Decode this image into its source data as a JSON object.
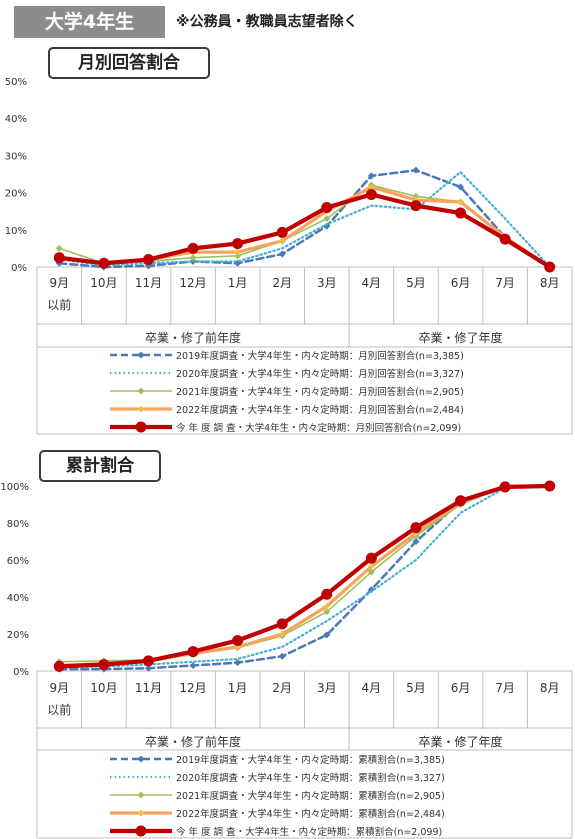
{
  "header": {
    "badge": "大学4年生",
    "note": "※公務員・教職員志望者除く"
  },
  "colors": {
    "s2019": "#4a79b8",
    "s2020": "#4bafd0",
    "s2021": "#9dc15e",
    "s2022": "#f7a35b",
    "current": "#c00000"
  },
  "chart_data": [
    {
      "type": "line",
      "title": "月別回答割合",
      "categories": [
        "9月",
        "10月",
        "11月",
        "12月",
        "1月",
        "2月",
        "3月",
        "4月",
        "5月",
        "6月",
        "7月",
        "8月"
      ],
      "category_sublabels": [
        "以前",
        "",
        "",
        "",
        "",
        "",
        "",
        "",
        "",
        "",
        "",
        ""
      ],
      "groups": [
        {
          "label": "卒業・修了前年度",
          "from": 0,
          "to": 6
        },
        {
          "label": "卒業・修了年度",
          "from": 7,
          "to": 11
        }
      ],
      "ylim": [
        0,
        50
      ],
      "yticks": [
        "0%",
        "10%",
        "20%",
        "30%",
        "40%",
        "50%"
      ],
      "grid": false,
      "legend_placement": "bottom",
      "series": [
        {
          "name": "2019年度調査・大学4年生・内々定時期：月別回答割合(n=3,385)",
          "values": [
            1,
            0,
            0.3,
            1.5,
            1,
            3.5,
            11,
            24.5,
            26,
            21.5,
            8,
            0
          ]
        },
        {
          "name": "2020年度調査・大学4年生・内々定時期：月別回答割合(n=3,327)",
          "values": [
            2,
            0.5,
            1,
            1.5,
            1.5,
            5,
            11.5,
            16.5,
            15.5,
            25.5,
            13,
            0
          ]
        },
        {
          "name": "2021年度調査・大学4年生・内々定時期：月別回答割合(n=2,905)",
          "values": [
            5,
            1,
            1.5,
            2.5,
            3,
            7,
            13,
            22,
            19,
            17.5,
            8,
            0
          ]
        },
        {
          "name": "2022年度調査・大学4年生・内々定時期：月別回答割合(n=2,484)",
          "values": [
            2.5,
            1,
            2,
            4,
            4,
            7,
            15,
            21.5,
            18,
            17.5,
            8,
            0
          ]
        },
        {
          "name": "今 年 度 調 査・大学4年生・内々定時期：月別回答割合(n=2,099)",
          "values": [
            2.5,
            1,
            2,
            5,
            6.3,
            9.3,
            16,
            19.5,
            16.5,
            14.5,
            7.5,
            0
          ]
        }
      ]
    },
    {
      "type": "line",
      "title": "累計割合",
      "categories": [
        "9月",
        "10月",
        "11月",
        "12月",
        "1月",
        "2月",
        "3月",
        "4月",
        "5月",
        "6月",
        "7月",
        "8月"
      ],
      "category_sublabels": [
        "以前",
        "",
        "",
        "",
        "",
        "",
        "",
        "",
        "",
        "",
        "",
        ""
      ],
      "groups": [
        {
          "label": "卒業・修了前年度",
          "from": 0,
          "to": 6
        },
        {
          "label": "卒業・修了年度",
          "from": 7,
          "to": 11
        }
      ],
      "ylim": [
        0,
        100
      ],
      "yticks": [
        "0%",
        "20%",
        "40%",
        "60%",
        "80%",
        "100%"
      ],
      "grid": false,
      "legend_placement": "bottom",
      "series": [
        {
          "name": "2019年度調査・大学4年生・内々定時期：累積割合(n=3,385)",
          "values": [
            1,
            1,
            1.5,
            3,
            4.5,
            8,
            19.5,
            44,
            70,
            91.5,
            99.5,
            100
          ]
        },
        {
          "name": "2020年度調査・大学4年生・内々定時期：累積割合(n=3,327)",
          "values": [
            2,
            2.5,
            3.5,
            5,
            6.5,
            13,
            27,
            43,
            60,
            85.5,
            99,
            100
          ]
        },
        {
          "name": "2021年度調査・大学4年生・内々定時期：累積割合(n=2,905)",
          "values": [
            5,
            5.5,
            6,
            9,
            12.5,
            19,
            32,
            53.5,
            73,
            90,
            99.5,
            100
          ]
        },
        {
          "name": "2022年度調査・大学4年生・内々定時期：累積割合(n=2,484)",
          "values": [
            3,
            4,
            5.5,
            9.5,
            13,
            20,
            35,
            56.5,
            74.5,
            91.5,
            99.5,
            100
          ]
        },
        {
          "name": "今 年 度 調 査・大学4年生・内々定時期：累積割合(n=2,099)",
          "values": [
            2.5,
            3.5,
            5.5,
            10.5,
            16.5,
            25.5,
            41.5,
            61,
            77.5,
            92,
            99.5,
            100
          ]
        }
      ]
    }
  ]
}
